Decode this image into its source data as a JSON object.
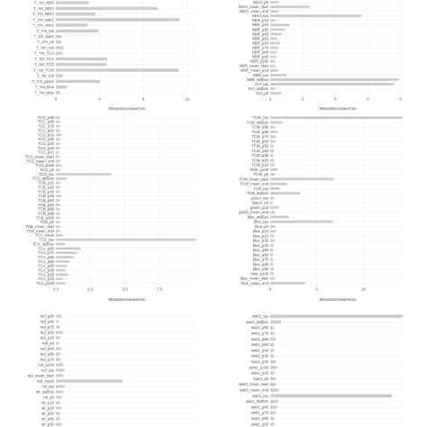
{
  "figure": {
    "background": "#ffffff"
  },
  "colors": {
    "bar": "#cccccc",
    "grid": "#ebebeb",
    "panel_bg": "#ffffff",
    "text": "#4d4d4d"
  },
  "chart_data": [
    {
      "type": "bar",
      "orientation": "horizontal",
      "xlabel": "MeanDecreaseGini",
      "ylabel": "",
      "xticks": [
        0,
        4,
        8,
        12
      ],
      "xlim": [
        0,
        13
      ],
      "grid": true,
      "categories": [
        "T_Yet_NBR",
        "T_Yet_NDVI",
        "T_Yrn_NDVI",
        "T_Yrn_swir1",
        "T_Yrn_swir2",
        "T_Yrn_tcb",
        "T_Yet_swir2",
        "T_Yrn_nir",
        "T_Yrn_red",
        "T_Yrn_TCA",
        "T_Yet_TCA",
        "T_Yet_TCG",
        "T_Yet_TCW",
        "T_Yet_red",
        "T_Yrn_green",
        "T_Yet_blue",
        "T_Yrn_blue"
      ],
      "values": [
        3.0,
        9.3,
        3.6,
        11.3,
        2.9,
        3.9,
        0.5,
        0.5,
        0.7,
        0.6,
        4.7,
        4.6,
        11.2,
        0.6,
        4.0,
        1.0,
        0.4
      ]
    },
    {
      "type": "bar",
      "orientation": "horizontal",
      "xlabel": "MeanDecreaseGini",
      "ylabel": "",
      "xticks": [
        0,
        2,
        4,
        6,
        8
      ],
      "xlim": [
        0,
        8.3
      ],
      "grid": true,
      "categories": [
        "NDVI_p0",
        "NDVI_mean_start",
        "NDVI_mean_end",
        "NDVI_tau",
        "NBR_p10",
        "NBR_p20",
        "NBR_p30",
        "NBR_p40",
        "NBR_p50",
        "NBR_p60",
        "NBR_p70",
        "NBR_p80",
        "NBR_p90",
        "NBR_p100",
        "NBR_mean_start",
        "NBR_mean_end",
        "NBR_tau",
        "NBR_stdDev",
        "EVI_tau",
        "EVI_stdDev",
        "EVI_p0"
      ],
      "values": [
        0.5,
        2.4,
        0.5,
        5.6,
        0.3,
        1.2,
        0.9,
        0.7,
        0.4,
        0.6,
        0.5,
        0.4,
        0.4,
        0.3,
        0.3,
        0.5,
        1.0,
        7.9,
        7.6,
        0.3,
        0.7
      ]
    },
    {
      "type": "bar",
      "orientation": "horizontal",
      "xlabel": "MeanDecreaseGini",
      "ylabel": "",
      "xticks": [
        0,
        2.5,
        5,
        7.5
      ],
      "xticklabels": [
        "0.0",
        "2.5",
        "5.0",
        "7.5"
      ],
      "xlim": [
        0,
        10.3
      ],
      "grid": true,
      "categories": [
        "TCG_p90",
        "TCG_p80",
        "TCG_p70",
        "TCG_p60",
        "TCG_p50",
        "TCG_p40",
        "TCG_p30",
        "TCG_p20",
        "TCG_p10",
        "TCG_mean_start",
        "TCG_mean_end",
        "TCG_p100",
        "TCG_p0",
        "TCG_tau",
        "TCG_stdDev",
        "TCB_p10",
        "TCB_p20",
        "TCB_p30",
        "TCB_p40",
        "TCB_p50",
        "TCB_p60",
        "TCB_p80",
        "TCB_p90",
        "TCB_p100",
        "TCB_p0",
        "TCB_mean_start",
        "TCB_mean_end",
        "TCA_mean",
        "TCA_tau",
        "TCA_stdDev",
        "TCA_p80",
        "TCA_p70",
        "TCA_p60",
        "TCA_p50",
        "TCA_p40",
        "TCA_p30",
        "TCA_p20",
        "TCA_p10",
        "TCA_p100"
      ],
      "values": [
        0.3,
        0.3,
        0.3,
        0.3,
        0.4,
        0.3,
        0.3,
        0.3,
        0.2,
        0.3,
        0.3,
        0.4,
        0.3,
        4.0,
        0.8,
        0.3,
        0.3,
        0.3,
        0.4,
        0.3,
        0.3,
        0.3,
        0.3,
        0.3,
        0.3,
        0.3,
        0.3,
        0.5,
        10.1,
        0.7,
        1.8,
        1.5,
        1.3,
        1.0,
        0.8,
        0.7,
        0.9,
        0.5,
        0.7
      ]
    },
    {
      "type": "bar",
      "orientation": "horizontal",
      "xlabel": "MeanDecreaseGini",
      "ylabel": "",
      "xticks": [
        0,
        5,
        10
      ],
      "xlim": [
        0,
        14.5
      ],
      "grid": true,
      "categories": [
        "TCW_tau",
        "TCW_stdDev",
        "TCW_p90",
        "TCW_p80",
        "TCW_p70",
        "TCW_p60",
        "TCW_p50",
        "TCW_p40",
        "TCW_p30",
        "TCW_p20",
        "TCW_p10",
        "TCW_p100",
        "TCW_p0",
        "TCW_mean_start",
        "TCW_mean_end",
        "TCB_tau",
        "TCB_stdDev",
        "green_tau",
        "green_p0",
        "green_p10",
        "green_mean_end",
        "blue_stdDev",
        "blue_tau",
        "blue_p0",
        "blue_p10",
        "blue_p20",
        "blue_p30",
        "blue_p40",
        "blue_p50",
        "blue_p60",
        "blue_p70",
        "blue_p80",
        "blue_p90",
        "blue_p100",
        "blue_mean_start",
        "blue_mean_end"
      ],
      "values": [
        14.2,
        1.3,
        0.5,
        0.8,
        0.6,
        0.5,
        0.4,
        0.4,
        0.3,
        0.4,
        0.5,
        0.8,
        0.5,
        6.8,
        1.8,
        1.0,
        3.2,
        0.4,
        0.3,
        0.9,
        0.5,
        2.0,
        6.7,
        0.5,
        0.6,
        0.4,
        0.5,
        0.4,
        0.3,
        0.3,
        0.3,
        0.3,
        0.4,
        0.4,
        0.5,
        3.7
      ]
    },
    {
      "type": "bar",
      "orientation": "horizontal",
      "xlabel": "",
      "ylabel": "",
      "xlim": [
        0,
        10
      ],
      "grid": true,
      "categories": [
        "red_p60",
        "red_p40",
        "red_p30",
        "red_p20",
        "red_p10",
        "red_p0",
        "red_p90",
        "red_p80",
        "red_p70",
        "red_p100",
        "red_tau",
        "red_mean_start",
        "red_mean",
        "nir_tau",
        "nir_stdDev",
        "nir_p0",
        "nir_p10",
        "nir_p20",
        "nir_p30",
        "nir_p40",
        "nir_p50"
      ],
      "values": [
        0.4,
        0.2,
        0.3,
        0.5,
        0.3,
        0.2,
        0.4,
        0.3,
        0.3,
        0.5,
        0.6,
        0.5,
        4.7,
        0.6,
        0.5,
        0.4,
        0.3,
        0.4,
        0.3,
        0.3,
        0.4
      ]
    },
    {
      "type": "bar",
      "orientation": "horizontal",
      "xlabel": "",
      "ylabel": "",
      "xlim": [
        0,
        10
      ],
      "grid": true,
      "categories": [
        "swir2_tau",
        "swir2_stdDev",
        "swir2_p80",
        "swir2_p70",
        "swir2_p60",
        "swir2_p50",
        "swir2_p40",
        "swir2_p30",
        "swir2_p20",
        "swir2_p100",
        "swir2_p10",
        "swir2_p0",
        "swir2_mean_start",
        "swir2_mean_end",
        "swir1_tau",
        "swir1_stdDev",
        "swir1_p80",
        "swir1_p70",
        "swir1_p60",
        "swir1_p50"
      ],
      "values": [
        9.8,
        0.8,
        0.3,
        0.3,
        0.4,
        0.3,
        0.3,
        0.3,
        0.4,
        0.5,
        0.3,
        0.4,
        0.4,
        0.6,
        9.0,
        0.6,
        0.5,
        0.4,
        0.3,
        0.3
      ]
    }
  ]
}
